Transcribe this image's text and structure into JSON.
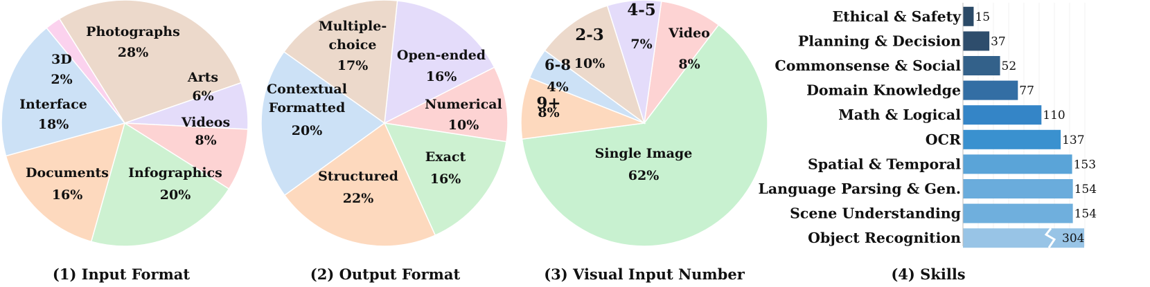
{
  "chart_data": [
    {
      "type": "pie",
      "title": "(1) Input Format",
      "slices": [
        {
          "label": [
            "Photographs"
          ],
          "pct": "28%",
          "value": 28,
          "color": "#ecd9cb"
        },
        {
          "label": [
            "Arts"
          ],
          "pct": "6%",
          "value": 6,
          "color": "#e4dcfa"
        },
        {
          "label": [
            "Videos"
          ],
          "pct": "8%",
          "value": 8,
          "color": "#fdd3d3"
        },
        {
          "label": [
            "Infographics"
          ],
          "pct": "20%",
          "value": 20,
          "color": "#cdf1d1"
        },
        {
          "label": [
            "Documents"
          ],
          "pct": "16%",
          "value": 16,
          "color": "#fdd9be"
        },
        {
          "label": [
            "Interface"
          ],
          "pct": "18%",
          "value": 18,
          "color": "#cce1f6"
        },
        {
          "label": [
            "3D"
          ],
          "pct": "2%",
          "value": 2,
          "color": "#fbd2ee"
        }
      ]
    },
    {
      "type": "pie",
      "title": "(2) Output Format",
      "slices": [
        {
          "label": [
            "Open-ended"
          ],
          "pct": "16%",
          "value": 16,
          "color": "#e4dcfa"
        },
        {
          "label": [
            "Numerical"
          ],
          "pct": "10%",
          "value": 10,
          "color": "#fdd3d3"
        },
        {
          "label": [
            "Exact"
          ],
          "pct": "16%",
          "value": 16,
          "color": "#cdf1d1"
        },
        {
          "label": [
            "Structured"
          ],
          "pct": "22%",
          "value": 22,
          "color": "#fdd9be"
        },
        {
          "label": [
            "Contextual",
            "Formatted"
          ],
          "pct": "20%",
          "value": 20,
          "color": "#cce1f6"
        },
        {
          "label": [
            "Multiple-",
            "choice"
          ],
          "pct": "17%",
          "value": 17,
          "color": "#ecd9cb"
        }
      ]
    },
    {
      "type": "pie",
      "title": "(3) Visual Input Number",
      "slices": [
        {
          "label": [
            "Video"
          ],
          "pct": "8%",
          "value": 8,
          "color": "#fdd3d3"
        },
        {
          "label": [
            "Single Image"
          ],
          "pct": "62%",
          "value": 62,
          "color": "#c8f1d0"
        },
        {
          "label": [
            "9+"
          ],
          "pct": "8%",
          "value": 8,
          "color": "#fdd9be"
        },
        {
          "label": [
            "6-8"
          ],
          "pct": "4%",
          "value": 4,
          "color": "#cce1f6"
        },
        {
          "label": [
            "2-3"
          ],
          "pct": "10%",
          "value": 10,
          "color": "#ecd9cb"
        },
        {
          "label": [
            "4-5"
          ],
          "pct": "7%",
          "value": 7,
          "color": "#e4dcfa"
        }
      ]
    },
    {
      "type": "bar",
      "orientation": "horizontal",
      "title": "(4) Skills",
      "broken_axis": true,
      "categories": [
        "Ethical & Safety",
        "Planning & Decision",
        "Commonsense & Social",
        "Domain Knowledge",
        "Math & Logical",
        "OCR",
        "Spatial & Temporal",
        "Language Parsing & Gen.",
        "Scene  Understanding",
        "Object Recognition"
      ],
      "values": [
        15,
        37,
        52,
        77,
        110,
        137,
        153,
        154,
        154,
        304
      ],
      "colors": [
        "#2b4a67",
        "#2e4d6c",
        "#33618a",
        "#336ea4",
        "#3485c7",
        "#3a91cf",
        "#5aa4d8",
        "#6aacdc",
        "#6fafdd",
        "#98c4e6"
      ]
    }
  ]
}
